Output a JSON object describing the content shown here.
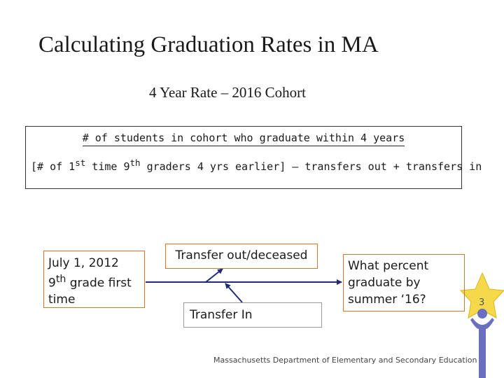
{
  "title": "Calculating Graduation Rates in MA",
  "subtitle": "4 Year Rate – 2016 Cohort",
  "formula": {
    "numerator": "# of students in cohort who graduate within 4 years",
    "denominator_pre": "[# of 1",
    "denominator_sup1": "st",
    "denominator_mid": " time 9",
    "denominator_sup2": "th",
    "denominator_post": " graders 4 yrs earlier] – transfers out + transfers in"
  },
  "boxes": {
    "start_line1": "July 1, 2012",
    "start_line2_pre": "9",
    "start_line2_sup": "th",
    "start_line2_post": " grade first",
    "start_line3": "time",
    "transfer_out": "Transfer out/deceased",
    "transfer_in": "Transfer In",
    "outcome": "What percent graduate by summer ‘16?"
  },
  "footer": "Massachusetts Department of Elementary and Secondary Education",
  "page_number": "3",
  "colors": {
    "box_border": "#d9732a",
    "star": "#f5d94a",
    "figure": "#6a6fc0",
    "arrow": "#1f2a7a"
  }
}
